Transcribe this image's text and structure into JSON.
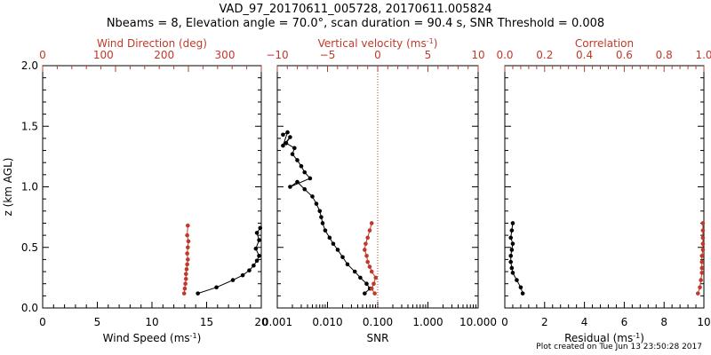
{
  "title_line1": "VAD_97_20170611_005728, 20170611.005824",
  "title_line2": "Nbeams = 8, Elevation angle = 70.0°, scan duration = 90.4 s, SNR Threshold = 0.008",
  "footer": "Plot created on Tue Jun 13 23:50:28 2017",
  "colors": {
    "primary": "#000000",
    "secondary": "#c0392b"
  },
  "chart_data": [
    {
      "type": "line",
      "ylabel": "z (km AGL)",
      "ylim": [
        0,
        2.0
      ],
      "yticks": [
        "0.0",
        "0.5",
        "1.0",
        "1.5",
        "2.0"
      ],
      "xlabel_bottom": "Wind Speed (ms",
      "xlabel_bottom_sup": "-1",
      "xlabel_bottom_tail": ")",
      "xlim_bottom": [
        0,
        20
      ],
      "xticks_bottom": [
        "0",
        "5",
        "10",
        "15",
        "20"
      ],
      "xlabel_top": "Wind Direction (deg)",
      "xlim_top": [
        0,
        360
      ],
      "xticks_top": [
        "0",
        "100",
        "200",
        "300"
      ],
      "series": [
        {
          "axis": "bottom",
          "color": "#000000",
          "x": [
            14.2,
            15.9,
            17.4,
            18.3,
            18.9,
            19.3,
            19.6,
            19.8,
            19.5,
            19.8,
            19.6,
            19.9
          ],
          "y": [
            0.12,
            0.17,
            0.23,
            0.27,
            0.31,
            0.35,
            0.39,
            0.43,
            0.49,
            0.56,
            0.62,
            0.66
          ]
        },
        {
          "axis": "top",
          "color": "#c0392b",
          "x": [
            233,
            234,
            235,
            236,
            236,
            237,
            238,
            239,
            238,
            239,
            240,
            238,
            239
          ],
          "y": [
            0.12,
            0.16,
            0.2,
            0.24,
            0.28,
            0.32,
            0.36,
            0.4,
            0.45,
            0.5,
            0.55,
            0.6,
            0.68
          ]
        }
      ]
    },
    {
      "type": "line",
      "ylim": [
        0,
        2.0
      ],
      "xlabel_bottom": "SNR",
      "xscale_bottom": "log",
      "xlim_bottom": [
        0.001,
        10
      ],
      "xticks_bottom": [
        "0.001",
        "0.010",
        "0.100",
        "1.000",
        "10.000"
      ],
      "xlabel_top": "Vertical velocity (ms",
      "xlabel_top_sup": "-1",
      "xlabel_top_tail": ")",
      "xlim_top": [
        -10,
        10
      ],
      "xticks_top": [
        "−10",
        "−5",
        "0",
        "5",
        "10"
      ],
      "reference_line_top_x": 0,
      "series": [
        {
          "axis": "bottom",
          "color": "#000000",
          "x": [
            0.055,
            0.07,
            0.06,
            0.045,
            0.035,
            0.025,
            0.02,
            0.016,
            0.013,
            0.011,
            0.009,
            0.008,
            0.0075,
            0.007,
            0.006,
            0.005,
            0.0035,
            0.0025,
            0.0018,
            0.0045,
            0.0035,
            0.003,
            0.0025,
            0.002,
            0.0022,
            0.0015,
            0.0018,
            0.0013,
            0.0016,
            0.0013
          ],
          "y": [
            0.12,
            0.16,
            0.2,
            0.25,
            0.3,
            0.36,
            0.42,
            0.48,
            0.53,
            0.58,
            0.64,
            0.7,
            0.75,
            0.8,
            0.86,
            0.92,
            0.98,
            1.04,
            1.0,
            1.07,
            1.12,
            1.17,
            1.22,
            1.27,
            1.32,
            1.36,
            1.41,
            1.34,
            1.45,
            1.43
          ]
        },
        {
          "axis": "top",
          "color": "#c0392b",
          "x": [
            -0.3,
            -0.6,
            -0.4,
            -0.2,
            -0.6,
            -0.8,
            -1.0,
            -1.1,
            -1.3,
            -1.2,
            -1.0,
            -0.8,
            -0.6
          ],
          "y": [
            0.12,
            0.16,
            0.2,
            0.25,
            0.3,
            0.34,
            0.38,
            0.43,
            0.48,
            0.53,
            0.58,
            0.64,
            0.7
          ]
        }
      ]
    },
    {
      "type": "line",
      "ylim": [
        0,
        2.0
      ],
      "xlabel_bottom": "Residual (ms",
      "xlabel_bottom_sup": "-1",
      "xlabel_bottom_tail": ")",
      "xlim_bottom": [
        0,
        10
      ],
      "xticks_bottom": [
        "0",
        "2",
        "4",
        "6",
        "8",
        "10"
      ],
      "xlabel_top": "Correlation",
      "xlim_top": [
        0,
        1.0
      ],
      "xticks_top": [
        "0.0",
        "0.2",
        "0.4",
        "0.6",
        "0.8",
        "1.0"
      ],
      "series": [
        {
          "axis": "bottom",
          "color": "#000000",
          "x": [
            0.9,
            0.8,
            0.6,
            0.4,
            0.35,
            0.3,
            0.3,
            0.35,
            0.4,
            0.3,
            0.35,
            0.4
          ],
          "y": [
            0.12,
            0.17,
            0.23,
            0.29,
            0.33,
            0.38,
            0.43,
            0.48,
            0.53,
            0.58,
            0.64,
            0.7
          ]
        },
        {
          "axis": "top",
          "color": "#c0392b",
          "x": [
            0.97,
            0.98,
            0.985,
            0.99,
            0.99,
            0.99,
            0.99,
            0.995,
            0.995,
            0.995,
            0.995,
            0.995
          ],
          "y": [
            0.12,
            0.17,
            0.23,
            0.29,
            0.33,
            0.38,
            0.43,
            0.48,
            0.53,
            0.58,
            0.64,
            0.7
          ]
        }
      ]
    }
  ]
}
